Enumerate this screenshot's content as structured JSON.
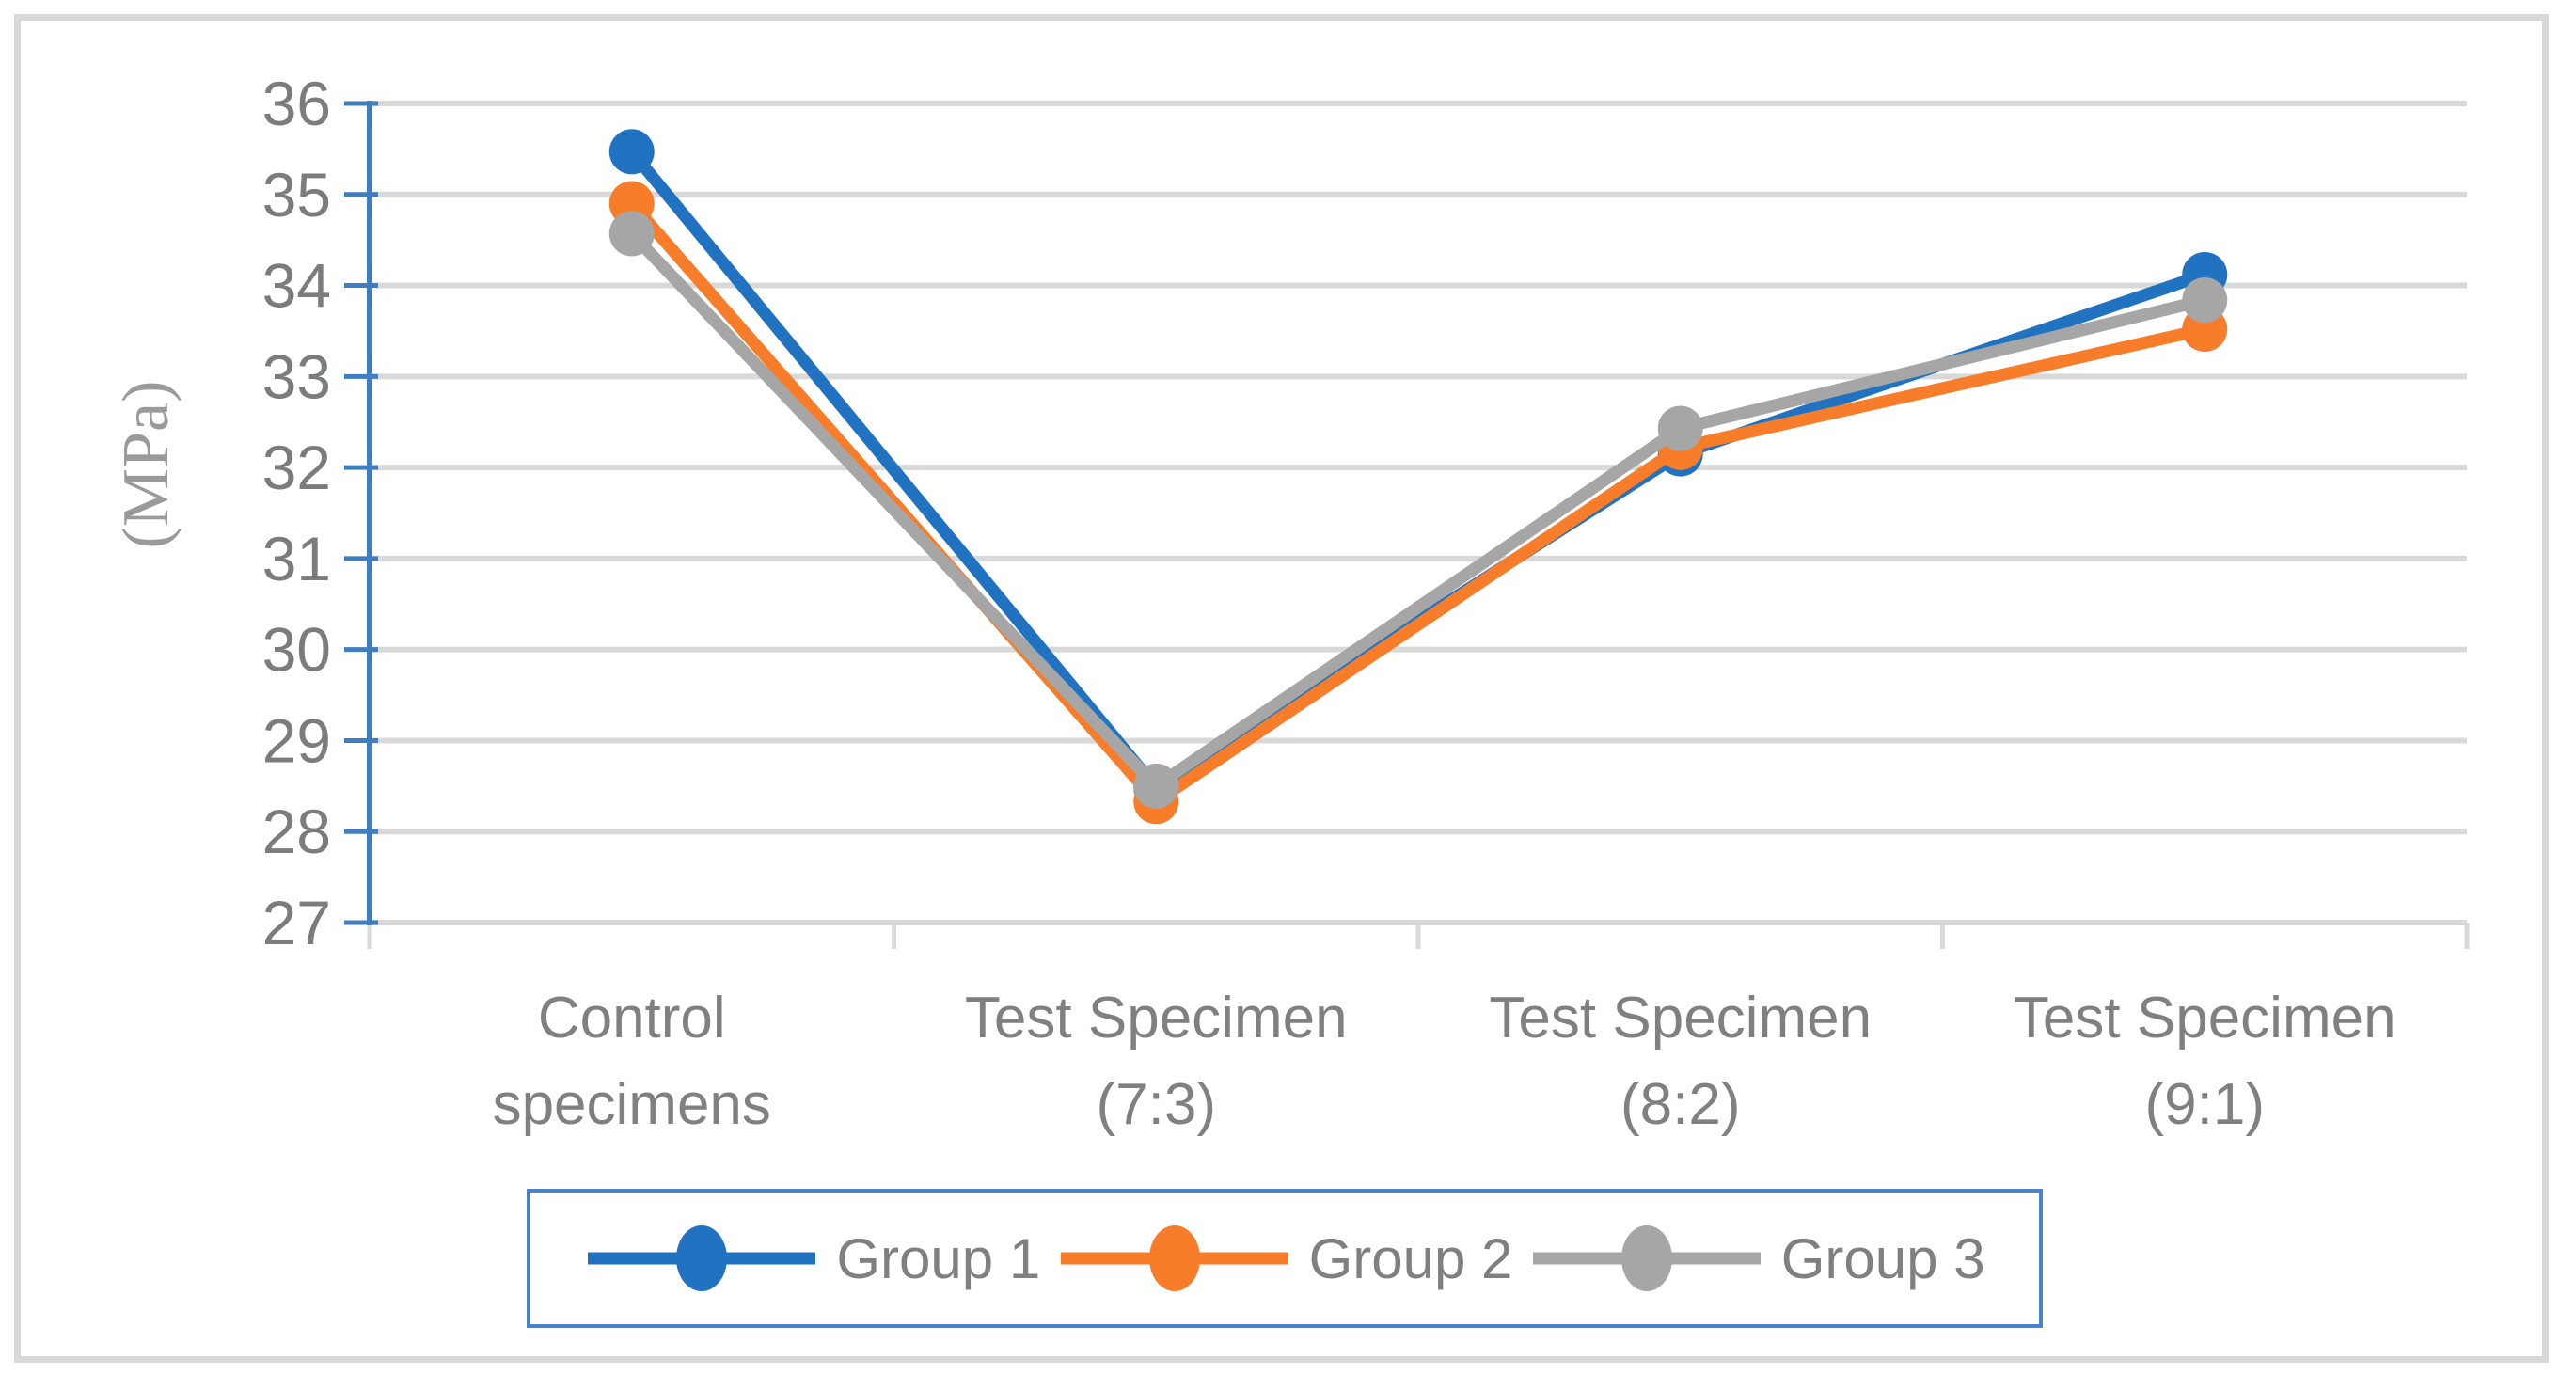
{
  "figure": {
    "background": "#FFFFFF",
    "border_color": "#D9D9D9"
  },
  "chart_data": {
    "type": "line",
    "title": "",
    "xlabel": "",
    "ylabel": "(MPa)",
    "ylim": [
      27,
      36
    ],
    "ytick_step": 1,
    "yticks": [
      27,
      28,
      29,
      30,
      31,
      32,
      33,
      34,
      35,
      36
    ],
    "grid": true,
    "legend_position": "bottom",
    "categories": [
      "Control specimens",
      "Test Specimen (7:3)",
      "Test Specimen (8:2)",
      "Test Specimen (9:1)"
    ],
    "category_label_lines": [
      [
        "Control",
        "specimens"
      ],
      [
        "Test Specimen",
        "(7:3)"
      ],
      [
        "Test Specimen",
        "(8:2)"
      ],
      [
        "Test Specimen",
        "(9:1)"
      ]
    ],
    "series": [
      {
        "name": "Group 1",
        "color": "#2173C2",
        "values": [
          35.47,
          28.48,
          32.15,
          34.12
        ]
      },
      {
        "name": "Group 2",
        "color": "#F87D2B",
        "values": [
          34.9,
          28.33,
          32.22,
          33.52
        ]
      },
      {
        "name": "Group 3",
        "color": "#A6A6A6",
        "values": [
          34.57,
          28.5,
          32.43,
          33.84
        ]
      }
    ],
    "colors": {
      "gridline": "#D9D9D9",
      "x_axis": "#D9D9D9",
      "y_axis": "#3E7EC1",
      "ytick_text": "#7C7C7C",
      "xtick_text": "#808080",
      "ylabel_text": "#9A9A9A",
      "legend_text": "#808080",
      "legend_border": "#4A82CE"
    }
  }
}
